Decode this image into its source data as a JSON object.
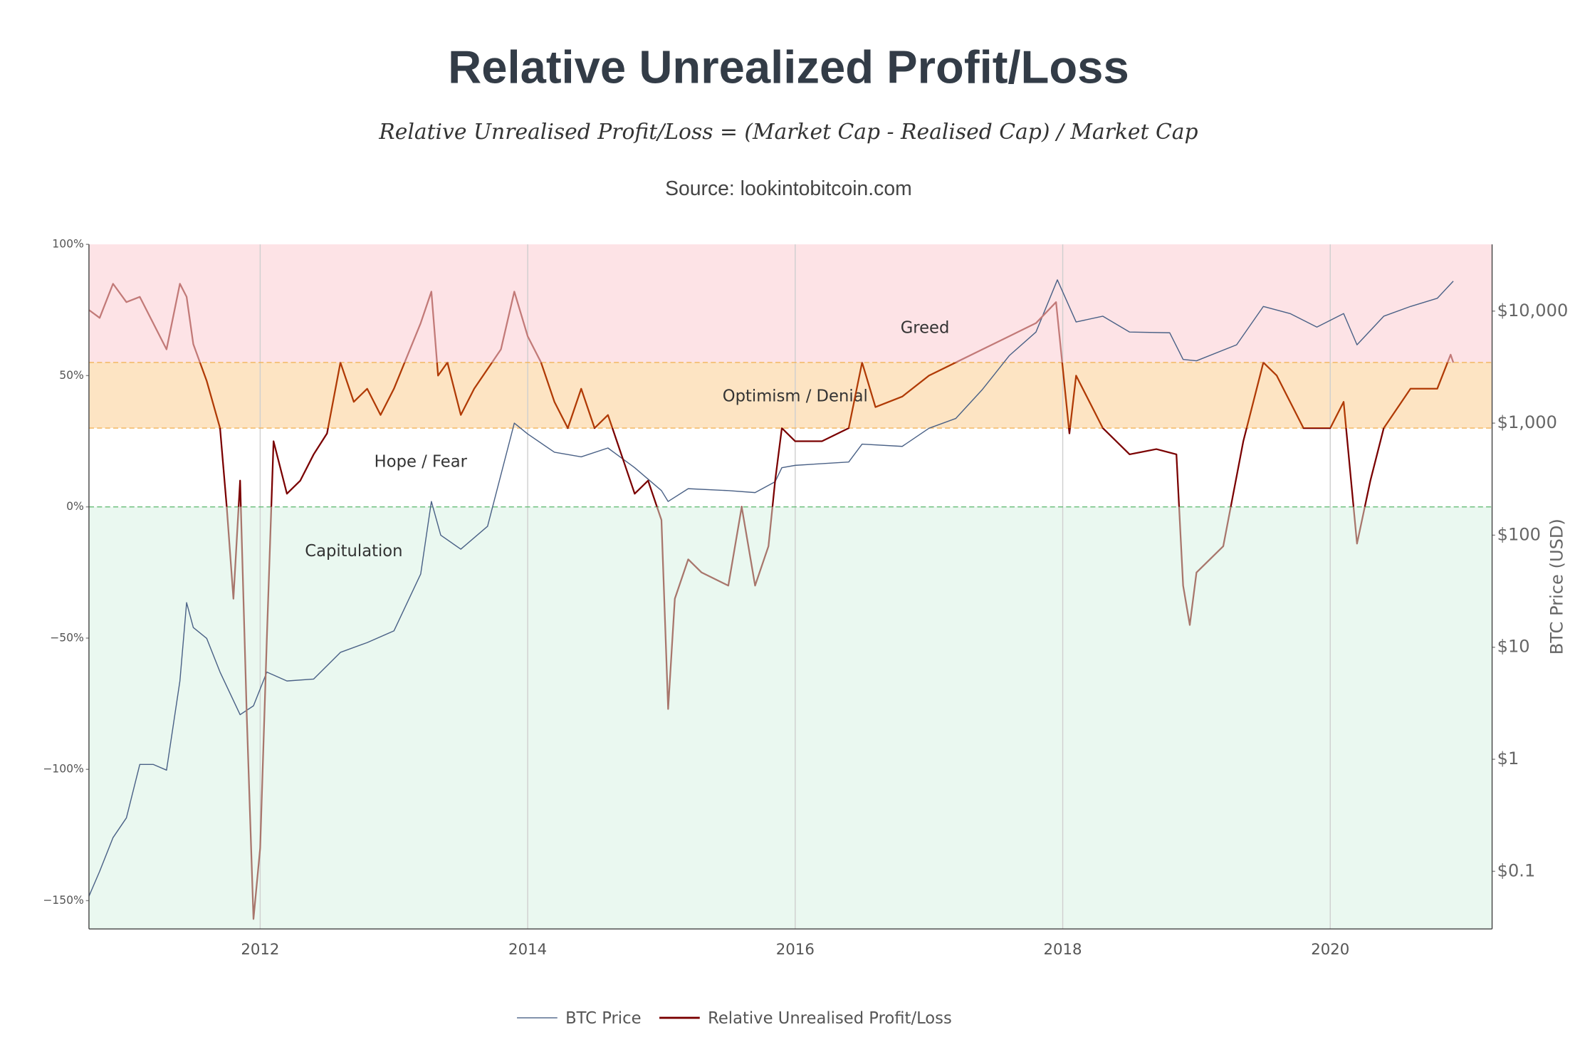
{
  "chart_data": {
    "type": "line",
    "title": "Relative Unrealized Profit/Loss",
    "subtitle": "Relative Unrealised Profit/Loss = (Market Cap - Realised Cap) / Market Cap",
    "source": "Source: lookintobitcoin.com",
    "y2_label": "BTC Price (USD)",
    "xlim": [
      2010.72,
      2021.21
    ],
    "xticks": [
      2012,
      2014,
      2016,
      2018,
      2020
    ],
    "ylim": [
      -160.8,
      100
    ],
    "yticks": [
      {
        "value": -150,
        "label": "−150%"
      },
      {
        "value": -100,
        "label": "−100%"
      },
      {
        "value": -50,
        "label": "−50%"
      },
      {
        "value": 0,
        "label": "0%"
      },
      {
        "value": 50,
        "label": "50%"
      },
      {
        "value": 100,
        "label": "100%"
      }
    ],
    "y2lim": [
      0.0306,
      39400
    ],
    "y2_log": true,
    "y2ticks": [
      {
        "value": 0.1,
        "label": "$0.1"
      },
      {
        "value": 1,
        "label": "$1"
      },
      {
        "value": 10,
        "label": "$10"
      },
      {
        "value": 100,
        "label": "$100"
      },
      {
        "value": 1000,
        "label": "$1,000"
      },
      {
        "value": 10000,
        "label": "$10,000"
      }
    ],
    "grid": true,
    "legend": "bottom",
    "bands": [
      {
        "label": "Greed",
        "lower": 55,
        "upper": 100,
        "color": "#fde3e6",
        "edge_color": "#f2b35a",
        "line_color": "#c27a78",
        "label_x": 2016.97,
        "label_y": 68
      },
      {
        "label": "Optimism / Denial",
        "lower": 30,
        "upper": 55,
        "color": "#fde4c3",
        "edge_color": "#f2b35a",
        "line_color": "#b03a05",
        "label_x": 2016.0,
        "label_y": 42
      },
      {
        "label": "Hope / Fear",
        "lower": 0,
        "upper": 30,
        "color": "#ffffff",
        "edge_color": "#66bb77",
        "line_color": "#7a0000",
        "label_x": 2013.2,
        "label_y": 17
      },
      {
        "label": "Capitulation",
        "lower": -160.8,
        "upper": 0,
        "color": "#eaf8f0",
        "edge_color": "#66bb77",
        "line_color": "#a8766c",
        "label_x": 2012.7,
        "label_y": -17
      }
    ],
    "series": [
      {
        "name": "BTC Price",
        "color": "#4a6186",
        "axis": "y2",
        "x": [
          2010.72,
          2010.8,
          2010.9,
          2011.0,
          2011.1,
          2011.2,
          2011.3,
          2011.4,
          2011.45,
          2011.5,
          2011.6,
          2011.7,
          2011.85,
          2011.95,
          2012.05,
          2012.2,
          2012.4,
          2012.6,
          2012.8,
          2013.0,
          2013.2,
          2013.28,
          2013.35,
          2013.5,
          2013.7,
          2013.9,
          2014.0,
          2014.2,
          2014.4,
          2014.6,
          2014.8,
          2015.0,
          2015.05,
          2015.2,
          2015.5,
          2015.7,
          2015.85,
          2015.9,
          2016.0,
          2016.4,
          2016.5,
          2016.8,
          2017.0,
          2017.2,
          2017.4,
          2017.6,
          2017.8,
          2017.96,
          2018.1,
          2018.3,
          2018.5,
          2018.8,
          2018.9,
          2019.0,
          2019.3,
          2019.5,
          2019.7,
          2019.9,
          2020.1,
          2020.2,
          2020.4,
          2020.6,
          2020.8,
          2020.92
        ],
        "values": [
          0.06,
          0.1,
          0.2,
          0.3,
          0.9,
          0.9,
          0.8,
          5,
          25,
          15,
          12,
          6,
          2.5,
          3,
          6,
          5,
          5.2,
          9,
          11,
          14,
          45,
          200,
          100,
          75,
          120,
          1000,
          800,
          550,
          500,
          600,
          400,
          250,
          200,
          260,
          250,
          240,
          300,
          400,
          420,
          450,
          650,
          620,
          900,
          1100,
          2000,
          4000,
          6500,
          19000,
          8000,
          9000,
          6500,
          6400,
          3700,
          3600,
          5000,
          11000,
          9500,
          7200,
          9500,
          5000,
          9000,
          11000,
          13000,
          18500
        ]
      },
      {
        "name": "Relative Unrealised Profit/Loss",
        "color": "#7a0000",
        "x": [
          2010.72,
          2010.8,
          2010.9,
          2011.0,
          2011.1,
          2011.2,
          2011.3,
          2011.4,
          2011.45,
          2011.5,
          2011.6,
          2011.7,
          2011.75,
          2011.8,
          2011.85,
          2011.9,
          2011.95,
          2012.0,
          2012.05,
          2012.1,
          2012.2,
          2012.3,
          2012.4,
          2012.5,
          2012.6,
          2012.7,
          2012.8,
          2012.9,
          2013.0,
          2013.2,
          2013.28,
          2013.33,
          2013.4,
          2013.5,
          2013.6,
          2013.8,
          2013.9,
          2014.0,
          2014.1,
          2014.2,
          2014.3,
          2014.4,
          2014.5,
          2014.6,
          2014.7,
          2014.8,
          2014.9,
          2015.0,
          2015.05,
          2015.1,
          2015.2,
          2015.3,
          2015.5,
          2015.6,
          2015.7,
          2015.8,
          2015.85,
          2015.9,
          2016.0,
          2016.2,
          2016.4,
          2016.5,
          2016.6,
          2016.8,
          2017.0,
          2017.2,
          2017.4,
          2017.6,
          2017.8,
          2017.95,
          2018.05,
          2018.1,
          2018.3,
          2018.5,
          2018.7,
          2018.85,
          2018.9,
          2018.95,
          2019.0,
          2019.2,
          2019.35,
          2019.5,
          2019.6,
          2019.8,
          2020.0,
          2020.1,
          2020.2,
          2020.3,
          2020.4,
          2020.6,
          2020.8,
          2020.9,
          2020.92
        ],
        "values": [
          75,
          72,
          85,
          78,
          80,
          70,
          60,
          85,
          80,
          62,
          48,
          30,
          0,
          -35,
          10,
          -80,
          -157,
          -130,
          -50,
          25,
          5,
          10,
          20,
          28,
          55,
          40,
          45,
          35,
          45,
          70,
          82,
          50,
          55,
          35,
          45,
          60,
          82,
          65,
          55,
          40,
          30,
          45,
          30,
          35,
          20,
          5,
          10,
          -5,
          -77,
          -35,
          -20,
          -25,
          -30,
          0,
          -30,
          -15,
          10,
          30,
          25,
          25,
          30,
          55,
          38,
          42,
          50,
          55,
          60,
          65,
          70,
          78,
          28,
          50,
          30,
          20,
          22,
          20,
          -30,
          -45,
          -25,
          -15,
          25,
          55,
          50,
          30,
          30,
          40,
          -14,
          10,
          30,
          45,
          45,
          58,
          55
        ]
      }
    ]
  }
}
